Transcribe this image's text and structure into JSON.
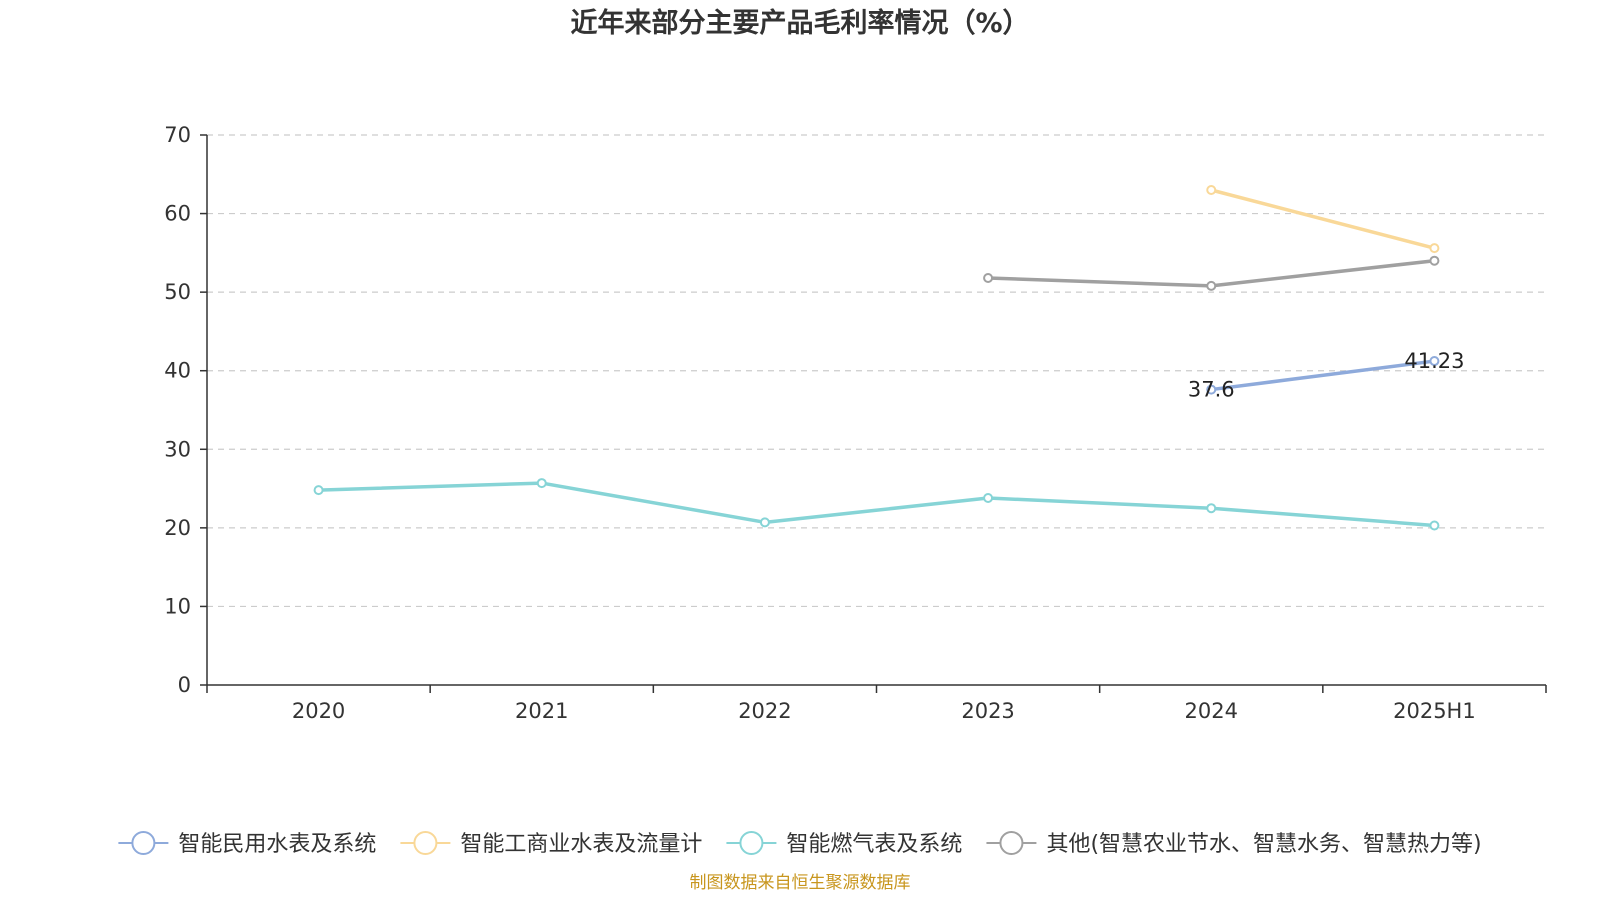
{
  "chart_data": {
    "type": "line",
    "title": "近年来部分主要产品毛利率情况（%）",
    "categories": [
      "2020",
      "2021",
      "2022",
      "2023",
      "2024",
      "2025H1"
    ],
    "ylim": [
      0,
      70
    ],
    "yticks": [
      0,
      10,
      20,
      30,
      40,
      50,
      60,
      70
    ],
    "grid": true,
    "legend_position": "bottom",
    "series": [
      {
        "name": "智能民用水表及系统",
        "color": "#8eaadb",
        "values": [
          null,
          null,
          null,
          null,
          37.6,
          41.23
        ],
        "data_labels": [
          "",
          "",
          "",
          "",
          "37.6",
          "41.23"
        ]
      },
      {
        "name": "智能工商业水表及流量计",
        "color": "#f9d898",
        "values": [
          null,
          null,
          null,
          null,
          63.0,
          55.6
        ],
        "data_labels": [
          "",
          "",
          "",
          "",
          "",
          ""
        ]
      },
      {
        "name": "智能燃气表及系统",
        "color": "#86d4d6",
        "values": [
          24.8,
          25.7,
          20.7,
          23.8,
          22.5,
          20.3
        ],
        "data_labels": [
          "",
          "",
          "",
          "",
          "",
          ""
        ]
      },
      {
        "name": "其他(智慧农业节水、智慧水务、智慧热力等)",
        "color": "#a0a0a0",
        "values": [
          null,
          null,
          null,
          51.8,
          50.8,
          54.0
        ],
        "data_labels": [
          "",
          "",
          "",
          "",
          "",
          ""
        ]
      }
    ]
  },
  "source": "制图数据来自恒生聚源数据库"
}
